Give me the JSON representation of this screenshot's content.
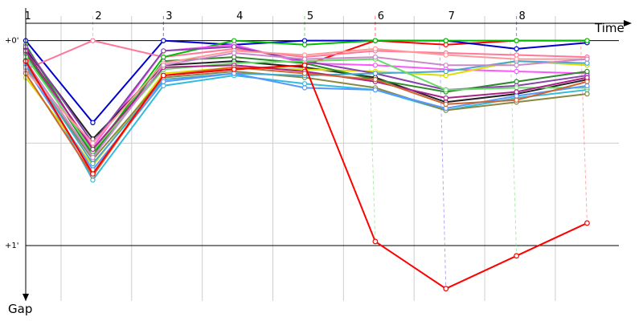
{
  "chart_data": {
    "type": "line",
    "xlabel": "Time",
    "ylabel": "Gap",
    "x_ticks": [
      "1",
      "2",
      "3",
      "4",
      "5",
      "6",
      "7",
      "8"
    ],
    "y_ticks": [
      "+0'",
      "+1'"
    ],
    "y_tick_values": [
      0,
      1
    ],
    "ylim": [
      -0.12,
      1.27
    ],
    "x": [
      1,
      2,
      3,
      4,
      5,
      6,
      7,
      8,
      9
    ],
    "xlim": [
      1,
      9.4
    ],
    "series": [
      {
        "color": "#ff0000",
        "values": [
          0.1,
          0.65,
          0.17,
          0.14,
          0.12,
          0.0,
          0.02,
          0.0,
          0.0
        ],
        "pits": [
          6,
          8
        ]
      },
      {
        "color": "#0000cc",
        "values": [
          0.0,
          0.4,
          0.0,
          0.02,
          0.0,
          0.0,
          0.0,
          0.04,
          0.01
        ],
        "pits": [
          3
        ]
      },
      {
        "color": "#ff7799",
        "values": [
          0.14,
          0.0,
          0.08,
          0.04,
          0.08,
          0.05,
          0.06,
          0.07,
          0.08
        ],
        "pits": [
          2
        ]
      },
      {
        "color": "#00bb00",
        "values": [
          0.02,
          0.55,
          0.08,
          0.0,
          0.02,
          0.0,
          0.0,
          0.0,
          0.0
        ],
        "pits": [
          5
        ]
      },
      {
        "color": "#ff55ff",
        "values": [
          0.07,
          0.52,
          0.05,
          0.02,
          0.11,
          0.12,
          0.14,
          0.15,
          0.16
        ],
        "pits": []
      },
      {
        "color": "#222222",
        "values": [
          0.04,
          0.48,
          0.12,
          0.1,
          0.13,
          0.18,
          0.3,
          0.26,
          0.19
        ],
        "pits": []
      },
      {
        "color": "#33bbdd",
        "values": [
          0.09,
          0.68,
          0.22,
          0.17,
          0.21,
          0.24,
          0.34,
          0.28,
          0.24
        ],
        "pits": [
          8
        ]
      },
      {
        "color": "#dddd00",
        "values": [
          0.18,
          0.61,
          0.16,
          0.13,
          0.14,
          0.15,
          0.17,
          0.1,
          0.12
        ],
        "pits": []
      },
      {
        "color": "#2d8a2d",
        "values": [
          0.06,
          0.56,
          0.1,
          0.08,
          0.11,
          0.19,
          0.25,
          0.2,
          0.15
        ],
        "pits": []
      },
      {
        "color": "#8844aa",
        "values": [
          0.03,
          0.5,
          0.05,
          0.03,
          0.1,
          0.16,
          0.24,
          0.22,
          0.17
        ],
        "pits": []
      },
      {
        "color": "#888844",
        "values": [
          0.12,
          0.58,
          0.18,
          0.15,
          0.18,
          0.23,
          0.34,
          0.3,
          0.26
        ],
        "pits": []
      },
      {
        "color": "#44aacc",
        "values": [
          0.11,
          0.6,
          0.19,
          0.16,
          0.17,
          0.16,
          0.15,
          0.1,
          0.11
        ],
        "pits": []
      },
      {
        "color": "#66dd66",
        "values": [
          0.08,
          0.54,
          0.14,
          0.11,
          0.1,
          0.09,
          0.24,
          0.23,
          0.23
        ],
        "pits": []
      },
      {
        "color": "#aa2288",
        "values": [
          0.05,
          0.53,
          0.13,
          0.12,
          0.15,
          0.2,
          0.28,
          0.25,
          0.18
        ],
        "pits": []
      },
      {
        "color": "#5599ff",
        "values": [
          0.13,
          0.63,
          0.2,
          0.16,
          0.23,
          0.24,
          0.33,
          0.27,
          0.22
        ],
        "pits": []
      },
      {
        "color": "#ff9999",
        "values": [
          0.15,
          0.5,
          0.11,
          0.05,
          0.07,
          0.04,
          0.07,
          0.09,
          0.09
        ],
        "pits": []
      },
      {
        "color": "#cc6633",
        "values": [
          0.16,
          0.66,
          0.17,
          0.13,
          0.16,
          0.19,
          0.31,
          0.29,
          0.2
        ],
        "pits": []
      },
      {
        "color": "#cc88cc",
        "values": [
          0.1,
          0.57,
          0.12,
          0.06,
          0.09,
          0.08,
          0.12,
          0.12,
          0.09
        ],
        "pits": []
      }
    ],
    "highlight": {
      "color": "#ff0000",
      "values": [
        0.1,
        0.65,
        0.17,
        0.14,
        0.12,
        0.98,
        1.21,
        1.05,
        0.89
      ]
    }
  }
}
